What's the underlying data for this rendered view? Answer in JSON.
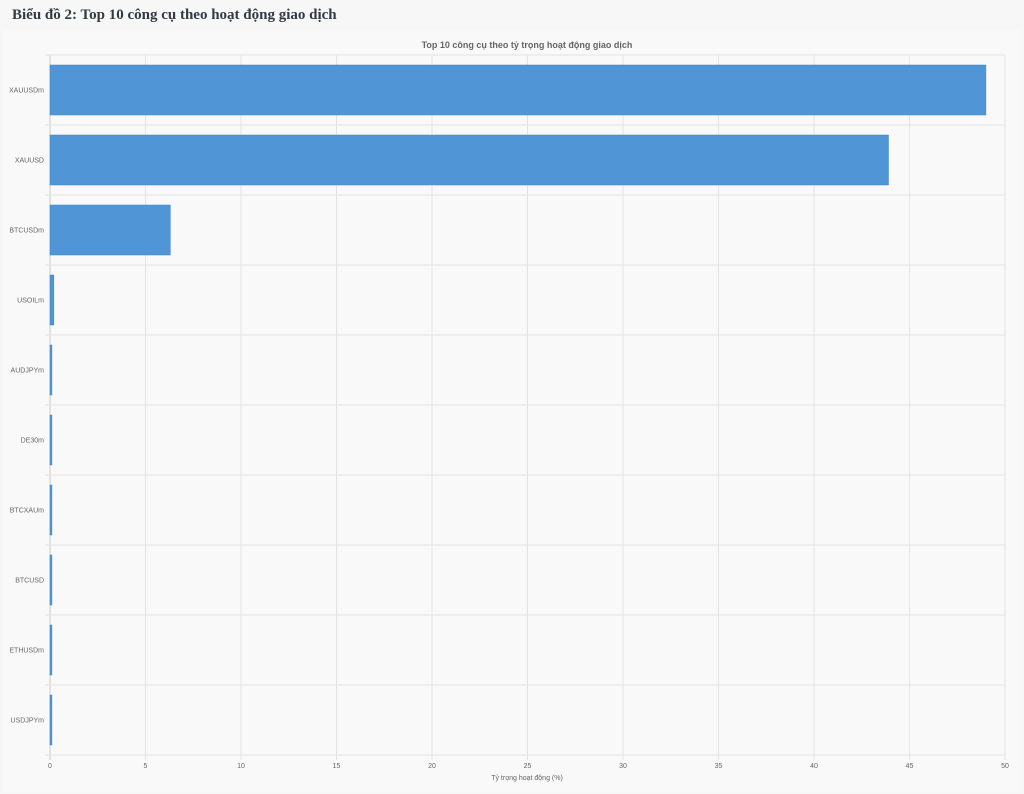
{
  "page": {
    "heading": "Biểu đồ 2: Top 10 công cụ theo hoạt động giao dịch"
  },
  "chart_data": {
    "type": "bar",
    "orientation": "horizontal",
    "title": "Top 10 công cụ theo tỷ trọng hoạt động giao dịch",
    "xlabel": "Tỷ trọng hoạt động (%)",
    "ylabel": "",
    "categories": [
      "XAUUSDm",
      "XAUUSD",
      "BTCUSDm",
      "USOILm",
      "AUDJPYm",
      "DE30m",
      "BTCXAUm",
      "BTCUSD",
      "ETHUSDm",
      "USDJPYm"
    ],
    "values": [
      49.0,
      43.9,
      6.3,
      0.2,
      0.1,
      0.1,
      0.1,
      0.1,
      0.1,
      0.1
    ],
    "xlim": [
      0,
      50
    ],
    "xticks": [
      "0",
      "5",
      "10",
      "15",
      "20",
      "25",
      "30",
      "35",
      "40",
      "45",
      "50"
    ],
    "grid": true,
    "legend": "none",
    "bar_color": "#5096d6",
    "bar_border_color": "#3f82c4"
  }
}
